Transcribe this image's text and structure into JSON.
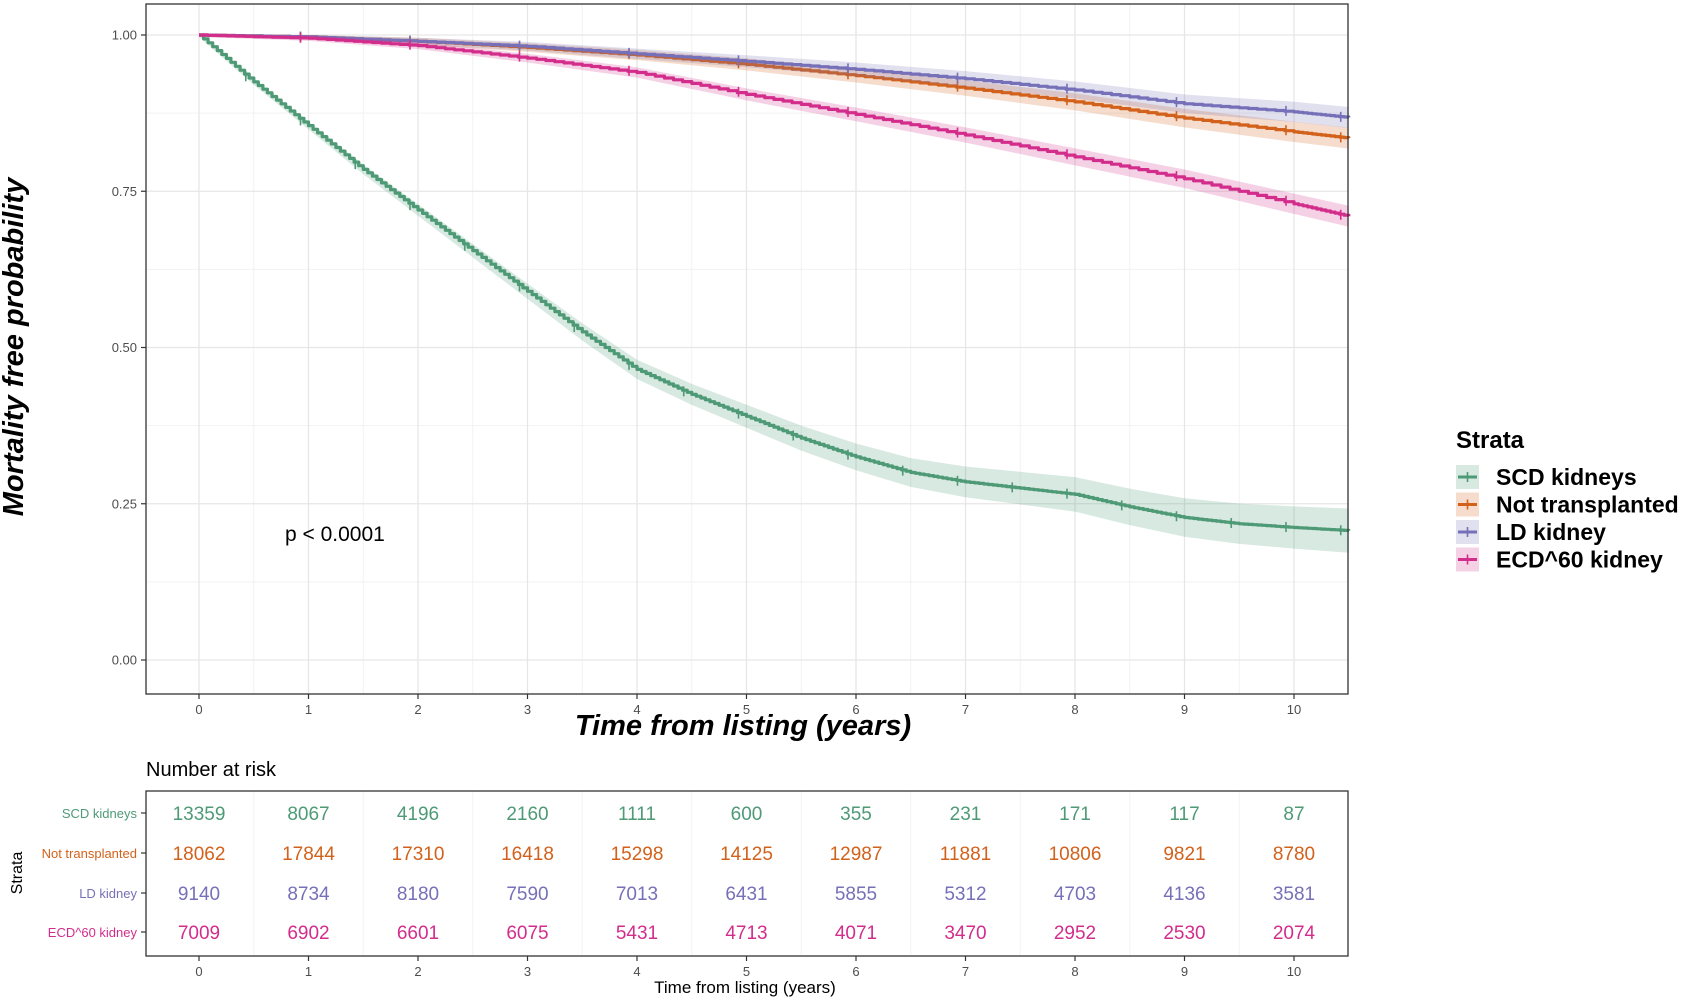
{
  "chart_data": {
    "type": "line",
    "subtype": "kaplan-meier survival curve with number-at-risk table",
    "title": "",
    "xlabel": "Time from listing (years)",
    "ylabel": "Mortality free probability",
    "xlim": [
      0,
      10.5
    ],
    "ylim": [
      0,
      1
    ],
    "x_ticks": [
      "0",
      "1",
      "2",
      "3",
      "4",
      "5",
      "6",
      "7",
      "8",
      "9",
      "10"
    ],
    "y_ticks": [
      "0.00",
      "0.25",
      "0.50",
      "0.75",
      "1.00"
    ],
    "grid": true,
    "legend_title": "Strata",
    "legend_position": "right",
    "annotation": "p < 0.0001",
    "series": [
      {
        "name": "SCD kidneys",
        "color": "#4e9a76",
        "x": [
          0,
          0.5,
          1,
          1.5,
          2,
          2.5,
          3,
          3.5,
          4,
          4.5,
          5,
          5.5,
          6,
          6.5,
          7,
          7.5,
          8,
          8.5,
          9,
          9.5,
          10,
          10.5
        ],
        "y": [
          1.0,
          0.925,
          0.855,
          0.785,
          0.72,
          0.655,
          0.59,
          0.525,
          0.465,
          0.425,
          0.39,
          0.355,
          0.325,
          0.3,
          0.285,
          0.275,
          0.265,
          0.245,
          0.228,
          0.218,
          0.212,
          0.207
        ]
      },
      {
        "name": "Not transplanted",
        "color": "#d2611b",
        "x": [
          0,
          1,
          2,
          3,
          4,
          5,
          6,
          7,
          8,
          9,
          10,
          10.5
        ],
        "y": [
          1.0,
          0.997,
          0.99,
          0.98,
          0.968,
          0.953,
          0.935,
          0.915,
          0.893,
          0.867,
          0.845,
          0.835
        ]
      },
      {
        "name": "LD kidney",
        "color": "#7670b8",
        "x": [
          0,
          1,
          2,
          3,
          4,
          5,
          6,
          7,
          8,
          9,
          10,
          10.5
        ],
        "y": [
          1.0,
          0.997,
          0.99,
          0.982,
          0.97,
          0.958,
          0.945,
          0.93,
          0.912,
          0.89,
          0.877,
          0.868
        ]
      },
      {
        "name": "ECD^60 kidney",
        "color": "#d32d8c",
        "x": [
          0,
          1,
          2,
          3,
          4,
          5,
          6,
          7,
          8,
          9,
          10,
          10.5
        ],
        "y": [
          1.0,
          0.995,
          0.983,
          0.963,
          0.94,
          0.905,
          0.873,
          0.84,
          0.805,
          0.77,
          0.73,
          0.71
        ]
      }
    ],
    "risk_table": {
      "title": "Number at risk",
      "y_axis_title": "Strata",
      "x_axis_title": "Time from listing (years)",
      "times": [
        "0",
        "1",
        "2",
        "3",
        "4",
        "5",
        "6",
        "7",
        "8",
        "9",
        "10"
      ],
      "rows": [
        {
          "label": "SCD kidneys",
          "color": "#4e9a76",
          "values": [
            "13359",
            "8067",
            "4196",
            "2160",
            "1111",
            "600",
            "355",
            "231",
            "171",
            "117",
            "87"
          ]
        },
        {
          "label": "Not transplanted",
          "color": "#d2611b",
          "values": [
            "18062",
            "17844",
            "17310",
            "16418",
            "15298",
            "14125",
            "12987",
            "11881",
            "10806",
            "9821",
            "8780"
          ]
        },
        {
          "label": "LD kidney",
          "color": "#7670b8",
          "values": [
            "9140",
            "8734",
            "8180",
            "7590",
            "7013",
            "6431",
            "5855",
            "5312",
            "4703",
            "4136",
            "3581"
          ]
        },
        {
          "label": "ECD^60 kidney",
          "color": "#d32d8c",
          "values": [
            "7009",
            "6902",
            "6601",
            "6075",
            "5431",
            "4713",
            "4071",
            "3470",
            "2952",
            "2530",
            "2074"
          ]
        }
      ]
    }
  }
}
